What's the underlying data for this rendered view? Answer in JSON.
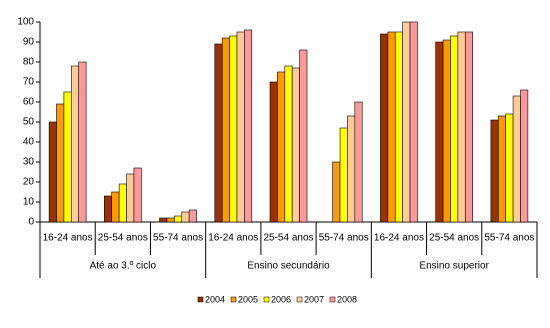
{
  "chart_data": {
    "type": "bar",
    "groups": [
      {
        "name": "Até ao 3.º ciclo",
        "categories": [
          "16-24 anos",
          "25-54 anos",
          "55-74 anos"
        ]
      },
      {
        "name": "Ensino secundário",
        "categories": [
          "16-24 anos",
          "25-54 anos",
          "55-74 anos"
        ]
      },
      {
        "name": "Ensino superior",
        "categories": [
          "16-24 anos",
          "25-54 anos",
          "55-74 anos"
        ]
      }
    ],
    "series": [
      {
        "name": "2004",
        "color": "#993300",
        "values": [
          50,
          13,
          2,
          89,
          70,
          null,
          94,
          90,
          51
        ]
      },
      {
        "name": "2005",
        "color": "#ff9900",
        "values": [
          59,
          15,
          2,
          92,
          75,
          30,
          95,
          91,
          53
        ]
      },
      {
        "name": "2006",
        "color": "#ffff00",
        "values": [
          65,
          19,
          3,
          93,
          78,
          47,
          95,
          93,
          54
        ]
      },
      {
        "name": "2007",
        "color": "#ffcc99",
        "values": [
          78,
          24,
          5,
          95,
          77,
          53,
          100,
          95,
          63
        ]
      },
      {
        "name": "2008",
        "color": "#ff9999",
        "values": [
          80,
          27,
          6,
          96,
          86,
          60,
          100,
          95,
          66
        ]
      }
    ],
    "ylim": [
      0,
      100
    ],
    "yticks": [
      0,
      10,
      20,
      30,
      40,
      50,
      60,
      70,
      80,
      90,
      100
    ],
    "grid": false
  }
}
